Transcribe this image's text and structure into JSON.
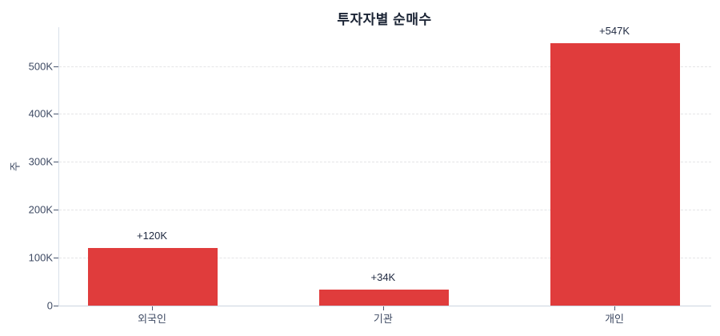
{
  "chart_data": {
    "type": "bar",
    "title": "투자자별 순매수",
    "ylabel": "주",
    "xlabel": "",
    "categories": [
      "외국인",
      "기관",
      "개인"
    ],
    "values": [
      120000,
      34000,
      547000
    ],
    "value_labels": [
      "+120K",
      "+34K",
      "+547K"
    ],
    "yticks": [
      {
        "value": 0,
        "label": "0"
      },
      {
        "value": 100000,
        "label": "100K"
      },
      {
        "value": 200000,
        "label": "200K"
      },
      {
        "value": 300000,
        "label": "300K"
      },
      {
        "value": 400000,
        "label": "400K"
      },
      {
        "value": 500000,
        "label": "500K"
      }
    ],
    "ylim": [
      0,
      581000
    ],
    "grid": "horizontal-dashed",
    "legend": "none",
    "bar_color": "#e03c3c",
    "title_color": "#1b2435",
    "tick_text_color": "#3e4a63",
    "label_text_color": "#1f2940",
    "grid_color": "#e4e4e6",
    "axis_line_color": "#ccd4e0"
  }
}
